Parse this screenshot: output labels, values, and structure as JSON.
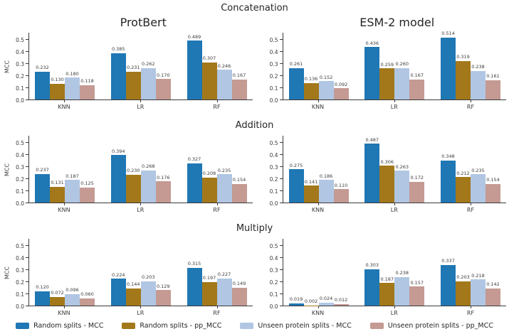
{
  "figure": {
    "sections": [
      {
        "title": "Concatenation"
      },
      {
        "title": "Addition"
      },
      {
        "title": "Multiply"
      }
    ]
  },
  "legend": {
    "items": [
      {
        "label": "Random splits - MCC",
        "color": "#1f77b4"
      },
      {
        "label": "Random splits - pp_MCC",
        "color": "#a3781a"
      },
      {
        "label": "Unseen protein splits - MCC",
        "color": "#b0c6e3"
      },
      {
        "label": "Unseen protein splits - pp_MCC",
        "color": "#c49a93"
      }
    ]
  },
  "chart_data": [
    {
      "type": "bar",
      "section": "Concatenation",
      "title": "ProtBert",
      "ylabel": "MCC",
      "categories": [
        "KNN",
        "LR",
        "RF"
      ],
      "yticks": [
        0.0,
        0.1,
        0.2,
        0.3,
        0.4,
        0.5
      ],
      "ylim": [
        0,
        0.56
      ],
      "series": [
        {
          "name": "Random splits - MCC",
          "color": "#1f77b4",
          "values": [
            0.232,
            0.385,
            0.489
          ]
        },
        {
          "name": "Random splits - pp_MCC",
          "color": "#a3781a",
          "values": [
            0.13,
            0.231,
            0.307
          ]
        },
        {
          "name": "Unseen protein splits - MCC",
          "color": "#b0c6e3",
          "values": [
            0.18,
            0.262,
            0.246
          ]
        },
        {
          "name": "Unseen protein splits - pp_MCC",
          "color": "#c49a93",
          "values": [
            0.118,
            0.17,
            0.167
          ]
        }
      ]
    },
    {
      "type": "bar",
      "section": "Concatenation",
      "title": "ESM-2 model",
      "ylabel": "",
      "categories": [
        "KNN",
        "LR",
        "RF"
      ],
      "yticks": [
        0.0,
        0.1,
        0.2,
        0.3,
        0.4,
        0.5
      ],
      "ylim": [
        0,
        0.56
      ],
      "series": [
        {
          "name": "Random splits - MCC",
          "color": "#1f77b4",
          "values": [
            0.261,
            0.436,
            0.514
          ]
        },
        {
          "name": "Random splits - pp_MCC",
          "color": "#a3781a",
          "values": [
            0.136,
            0.259,
            0.319
          ]
        },
        {
          "name": "Unseen protein splits - MCC",
          "color": "#b0c6e3",
          "values": [
            0.152,
            0.26,
            0.238
          ]
        },
        {
          "name": "Unseen protein splits - pp_MCC",
          "color": "#c49a93",
          "values": [
            0.092,
            0.167,
            0.161
          ]
        }
      ]
    },
    {
      "type": "bar",
      "section": "Addition",
      "title": "",
      "ylabel": "MCC",
      "categories": [
        "KNN",
        "LR",
        "RF"
      ],
      "yticks": [
        0.0,
        0.1,
        0.2,
        0.3,
        0.4,
        0.5
      ],
      "ylim": [
        0,
        0.56
      ],
      "series": [
        {
          "name": "Random splits - MCC",
          "color": "#1f77b4",
          "values": [
            0.237,
            0.394,
            0.327
          ]
        },
        {
          "name": "Random splits - pp_MCC",
          "color": "#a3781a",
          "values": [
            0.131,
            0.23,
            0.208
          ]
        },
        {
          "name": "Unseen protein splits - MCC",
          "color": "#b0c6e3",
          "values": [
            0.187,
            0.268,
            0.235
          ]
        },
        {
          "name": "Unseen protein splits - pp_MCC",
          "color": "#c49a93",
          "values": [
            0.125,
            0.176,
            0.154
          ]
        }
      ]
    },
    {
      "type": "bar",
      "section": "Addition",
      "title": "",
      "ylabel": "",
      "categories": [
        "KNN",
        "LR",
        "RF"
      ],
      "yticks": [
        0.0,
        0.1,
        0.2,
        0.3,
        0.4,
        0.5
      ],
      "ylim": [
        0,
        0.56
      ],
      "series": [
        {
          "name": "Random splits - MCC",
          "color": "#1f77b4",
          "values": [
            0.275,
            0.487,
            0.348
          ]
        },
        {
          "name": "Random splits - pp_MCC",
          "color": "#a3781a",
          "values": [
            0.141,
            0.306,
            0.212
          ]
        },
        {
          "name": "Unseen protein splits - MCC",
          "color": "#b0c6e3",
          "values": [
            0.186,
            0.263,
            0.235
          ]
        },
        {
          "name": "Unseen protein splits - pp_MCC",
          "color": "#c49a93",
          "values": [
            0.11,
            0.172,
            0.154
          ]
        }
      ]
    },
    {
      "type": "bar",
      "section": "Multiply",
      "title": "",
      "ylabel": "MCC",
      "categories": [
        "KNN",
        "LR",
        "RF"
      ],
      "yticks": [
        0.0,
        0.1,
        0.2,
        0.3,
        0.4,
        0.5
      ],
      "ylim": [
        0,
        0.56
      ],
      "series": [
        {
          "name": "Random splits - MCC",
          "color": "#1f77b4",
          "values": [
            0.12,
            0.224,
            0.315
          ]
        },
        {
          "name": "Random splits - pp_MCC",
          "color": "#a3781a",
          "values": [
            0.072,
            0.144,
            0.197
          ]
        },
        {
          "name": "Unseen protein splits - MCC",
          "color": "#b0c6e3",
          "values": [
            0.096,
            0.203,
            0.227
          ]
        },
        {
          "name": "Unseen protein splits - pp_MCC",
          "color": "#c49a93",
          "values": [
            0.06,
            0.129,
            0.149
          ]
        }
      ]
    },
    {
      "type": "bar",
      "section": "Multiply",
      "title": "",
      "ylabel": "",
      "categories": [
        "KNN",
        "LR",
        "RF"
      ],
      "yticks": [
        0.0,
        0.1,
        0.2,
        0.3,
        0.4,
        0.5
      ],
      "ylim": [
        0,
        0.56
      ],
      "series": [
        {
          "name": "Random splits - MCC",
          "color": "#1f77b4",
          "values": [
            0.019,
            0.303,
            0.337
          ]
        },
        {
          "name": "Random splits - pp_MCC",
          "color": "#a3781a",
          "values": [
            0.002,
            0.187,
            0.203
          ]
        },
        {
          "name": "Unseen protein splits - MCC",
          "color": "#b0c6e3",
          "values": [
            0.024,
            0.238,
            0.218
          ]
        },
        {
          "name": "Unseen protein splits - pp_MCC",
          "color": "#c49a93",
          "values": [
            0.012,
            0.157,
            0.142
          ]
        }
      ]
    }
  ]
}
